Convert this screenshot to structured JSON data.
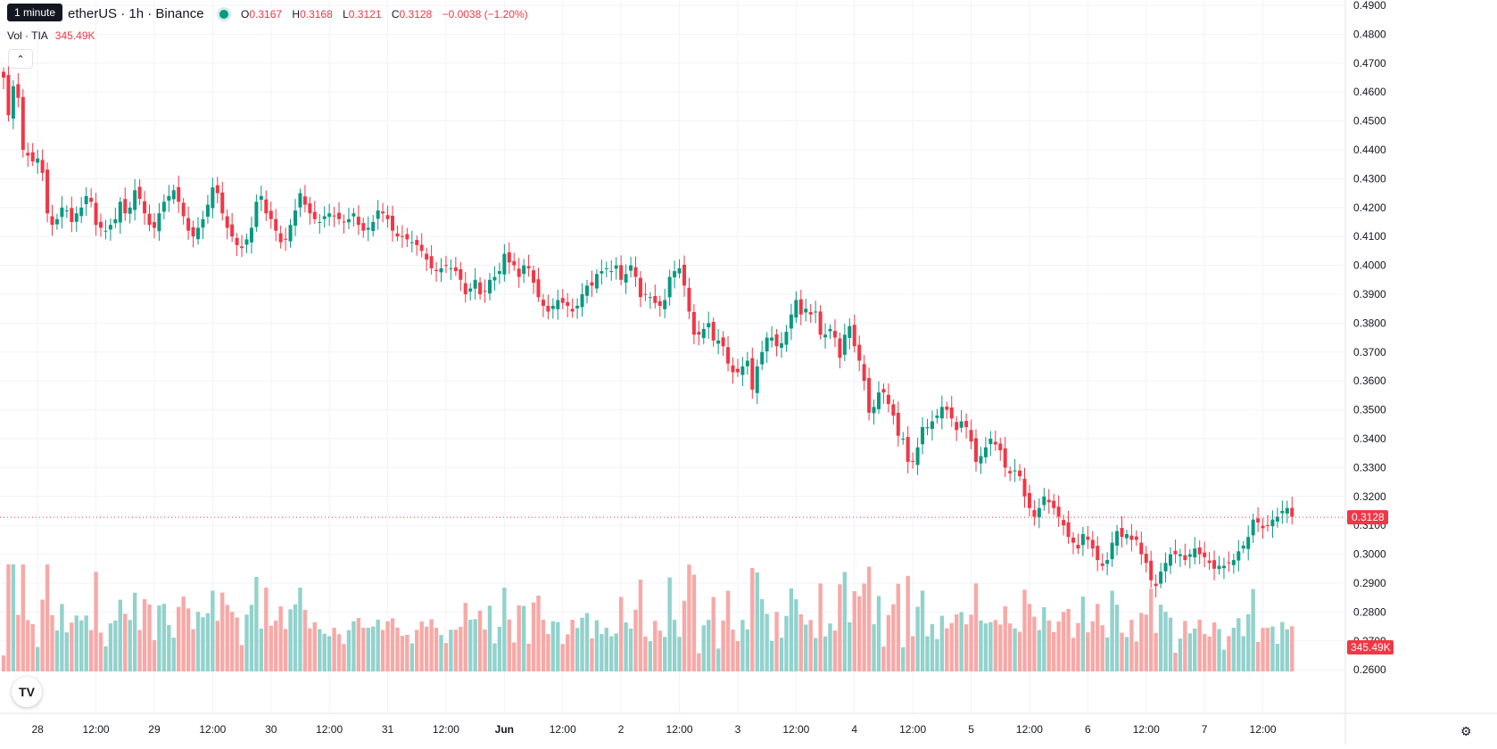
{
  "header": {
    "tooltip": "1 minute",
    "symbol": "etherUS · 1h · Binance",
    "ohlc": [
      {
        "label": "O",
        "value": "0.3167"
      },
      {
        "label": "H",
        "value": "0.3168"
      },
      {
        "label": "L",
        "value": "0.3121"
      },
      {
        "label": "C",
        "value": "0.3128"
      }
    ],
    "change": "−0.0038 (−1.20%)",
    "volume_label": "Vol · TIA",
    "volume_value": "345.49K"
  },
  "colors": {
    "up": "#089981",
    "down": "#f23645",
    "up_vol": "#92d2cc",
    "down_vol": "#f7a9a7"
  },
  "icons": {
    "logo": "tradingview-logo-icon",
    "settings": "gear-icon",
    "collapse": "chevron-up-icon"
  },
  "chart_data": {
    "type": "candlestick",
    "interval": "1h",
    "y_axis": {
      "min": 0.255,
      "max": 0.49,
      "ticks": [
        "0.4900",
        "0.4800",
        "0.4700",
        "0.4600",
        "0.4500",
        "0.4400",
        "0.4300",
        "0.4200",
        "0.4100",
        "0.4000",
        "0.3900",
        "0.3800",
        "0.3700",
        "0.3600",
        "0.3500",
        "0.3400",
        "0.3300",
        "0.3200",
        "0.3100",
        "0.3000",
        "0.2900",
        "0.2800",
        "0.2700",
        "0.2600"
      ]
    },
    "x_ticks": [
      {
        "label": "28",
        "bar": 7
      },
      {
        "label": "12:00",
        "bar": 19
      },
      {
        "label": "29",
        "bar": 31
      },
      {
        "label": "12:00",
        "bar": 43
      },
      {
        "label": "30",
        "bar": 55
      },
      {
        "label": "12:00",
        "bar": 67
      },
      {
        "label": "31",
        "bar": 79
      },
      {
        "label": "12:00",
        "bar": 91
      },
      {
        "label": "Jun",
        "bar": 103
      },
      {
        "label": "12:00",
        "bar": 115
      },
      {
        "label": "2",
        "bar": 127
      },
      {
        "label": "12:00",
        "bar": 139
      },
      {
        "label": "3",
        "bar": 151
      },
      {
        "label": "12:00",
        "bar": 163
      },
      {
        "label": "4",
        "bar": 175
      },
      {
        "label": "12:00",
        "bar": 187
      },
      {
        "label": "5",
        "bar": 199
      },
      {
        "label": "12:00",
        "bar": 211
      },
      {
        "label": "6",
        "bar": 223
      },
      {
        "label": "12:00",
        "bar": 235
      },
      {
        "label": "7",
        "bar": 247
      },
      {
        "label": "12:00",
        "bar": 259
      }
    ],
    "close": [
      0.465,
      0.452,
      0.462,
      0.458,
      0.44,
      0.438,
      0.436,
      0.437,
      0.432,
      0.418,
      0.414,
      0.416,
      0.42,
      0.419,
      0.415,
      0.418,
      0.42,
      0.424,
      0.422,
      0.414,
      0.413,
      0.412,
      0.414,
      0.416,
      0.422,
      0.418,
      0.42,
      0.426,
      0.423,
      0.418,
      0.414,
      0.413,
      0.418,
      0.422,
      0.424,
      0.426,
      0.422,
      0.417,
      0.412,
      0.41,
      0.413,
      0.416,
      0.421,
      0.427,
      0.425,
      0.418,
      0.413,
      0.41,
      0.407,
      0.406,
      0.409,
      0.413,
      0.422,
      0.424,
      0.418,
      0.416,
      0.412,
      0.408,
      0.409,
      0.414,
      0.419,
      0.425,
      0.421,
      0.418,
      0.416,
      0.415,
      0.417,
      0.418,
      0.417,
      0.416,
      0.415,
      0.416,
      0.418,
      0.414,
      0.412,
      0.413,
      0.415,
      0.419,
      0.418,
      0.416,
      0.412,
      0.41,
      0.41,
      0.409,
      0.408,
      0.407,
      0.405,
      0.402,
      0.399,
      0.398,
      0.399,
      0.4,
      0.399,
      0.398,
      0.395,
      0.39,
      0.392,
      0.395,
      0.39,
      0.391,
      0.395,
      0.396,
      0.398,
      0.404,
      0.401,
      0.4,
      0.396,
      0.4,
      0.399,
      0.394,
      0.389,
      0.386,
      0.384,
      0.386,
      0.388,
      0.387,
      0.386,
      0.384,
      0.386,
      0.39,
      0.393,
      0.393,
      0.397,
      0.398,
      0.399,
      0.398,
      0.4,
      0.395,
      0.397,
      0.4,
      0.396,
      0.389,
      0.39,
      0.389,
      0.387,
      0.386,
      0.388,
      0.396,
      0.398,
      0.399,
      0.393,
      0.384,
      0.376,
      0.376,
      0.378,
      0.38,
      0.374,
      0.374,
      0.372,
      0.366,
      0.363,
      0.363,
      0.365,
      0.367,
      0.357,
      0.365,
      0.37,
      0.375,
      0.375,
      0.372,
      0.373,
      0.377,
      0.383,
      0.388,
      0.383,
      0.385,
      0.383,
      0.384,
      0.376,
      0.376,
      0.378,
      0.375,
      0.368,
      0.376,
      0.379,
      0.372,
      0.367,
      0.36,
      0.349,
      0.351,
      0.356,
      0.356,
      0.352,
      0.348,
      0.341,
      0.34,
      0.332,
      0.332,
      0.337,
      0.344,
      0.344,
      0.346,
      0.348,
      0.351,
      0.35,
      0.347,
      0.343,
      0.346,
      0.344,
      0.339,
      0.332,
      0.334,
      0.337,
      0.34,
      0.338,
      0.336,
      0.33,
      0.328,
      0.329,
      0.327,
      0.32,
      0.316,
      0.313,
      0.316,
      0.32,
      0.318,
      0.316,
      0.313,
      0.31,
      0.306,
      0.304,
      0.302,
      0.307,
      0.305,
      0.302,
      0.298,
      0.296,
      0.298,
      0.304,
      0.308,
      0.306,
      0.307,
      0.305,
      0.305,
      0.3,
      0.297,
      0.291,
      0.289,
      0.294,
      0.297,
      0.3,
      0.3,
      0.3,
      0.298,
      0.3,
      0.302,
      0.3,
      0.299,
      0.297,
      0.295,
      0.296,
      0.296,
      0.297,
      0.298,
      0.301,
      0.303,
      0.306,
      0.312,
      0.311,
      0.309,
      0.31,
      0.312,
      0.313,
      0.315,
      0.316,
      0.313
    ],
    "last_price": "0.3128",
    "volume_label": "345.49K"
  }
}
